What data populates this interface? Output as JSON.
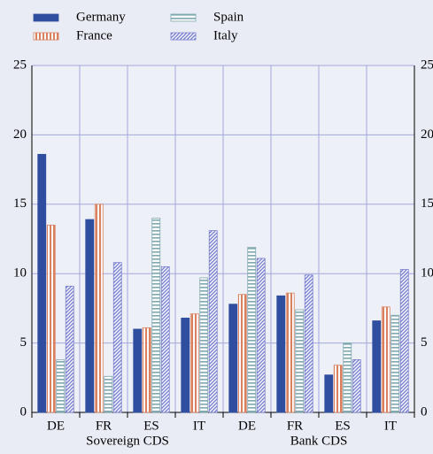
{
  "chart_data": {
    "type": "bar",
    "categories": [
      "DE",
      "FR",
      "ES",
      "IT",
      "DE",
      "FR",
      "ES",
      "IT"
    ],
    "groups": [
      "Sovereign CDS",
      "Bank CDS"
    ],
    "series": [
      {
        "name": "Germany",
        "color": "#2f4ea0",
        "pattern": "solid",
        "values": [
          18.6,
          13.9,
          6.0,
          6.8,
          7.8,
          8.4,
          2.7,
          6.6
        ]
      },
      {
        "name": "France",
        "color": "#d9805e",
        "pattern": "vertical",
        "values": [
          13.5,
          15.0,
          6.1,
          7.1,
          8.5,
          8.6,
          3.4,
          7.6
        ]
      },
      {
        "name": "Spain",
        "color": "#7fa9ae",
        "pattern": "horizontal",
        "values": [
          3.8,
          2.6,
          14.0,
          9.7,
          11.9,
          7.4,
          5.0,
          7.0
        ]
      },
      {
        "name": "Italy",
        "color": "#7a80d0",
        "pattern": "diagonal",
        "values": [
          9.1,
          10.8,
          10.5,
          13.1,
          11.1,
          9.9,
          3.8,
          10.3
        ]
      }
    ],
    "ylim": [
      0,
      25
    ],
    "yticks": [
      0,
      5,
      10,
      15,
      20,
      25
    ],
    "y2lim": [
      0,
      25
    ],
    "y2ticks": [
      0,
      5,
      10,
      15,
      20,
      25
    ],
    "grid": true
  }
}
